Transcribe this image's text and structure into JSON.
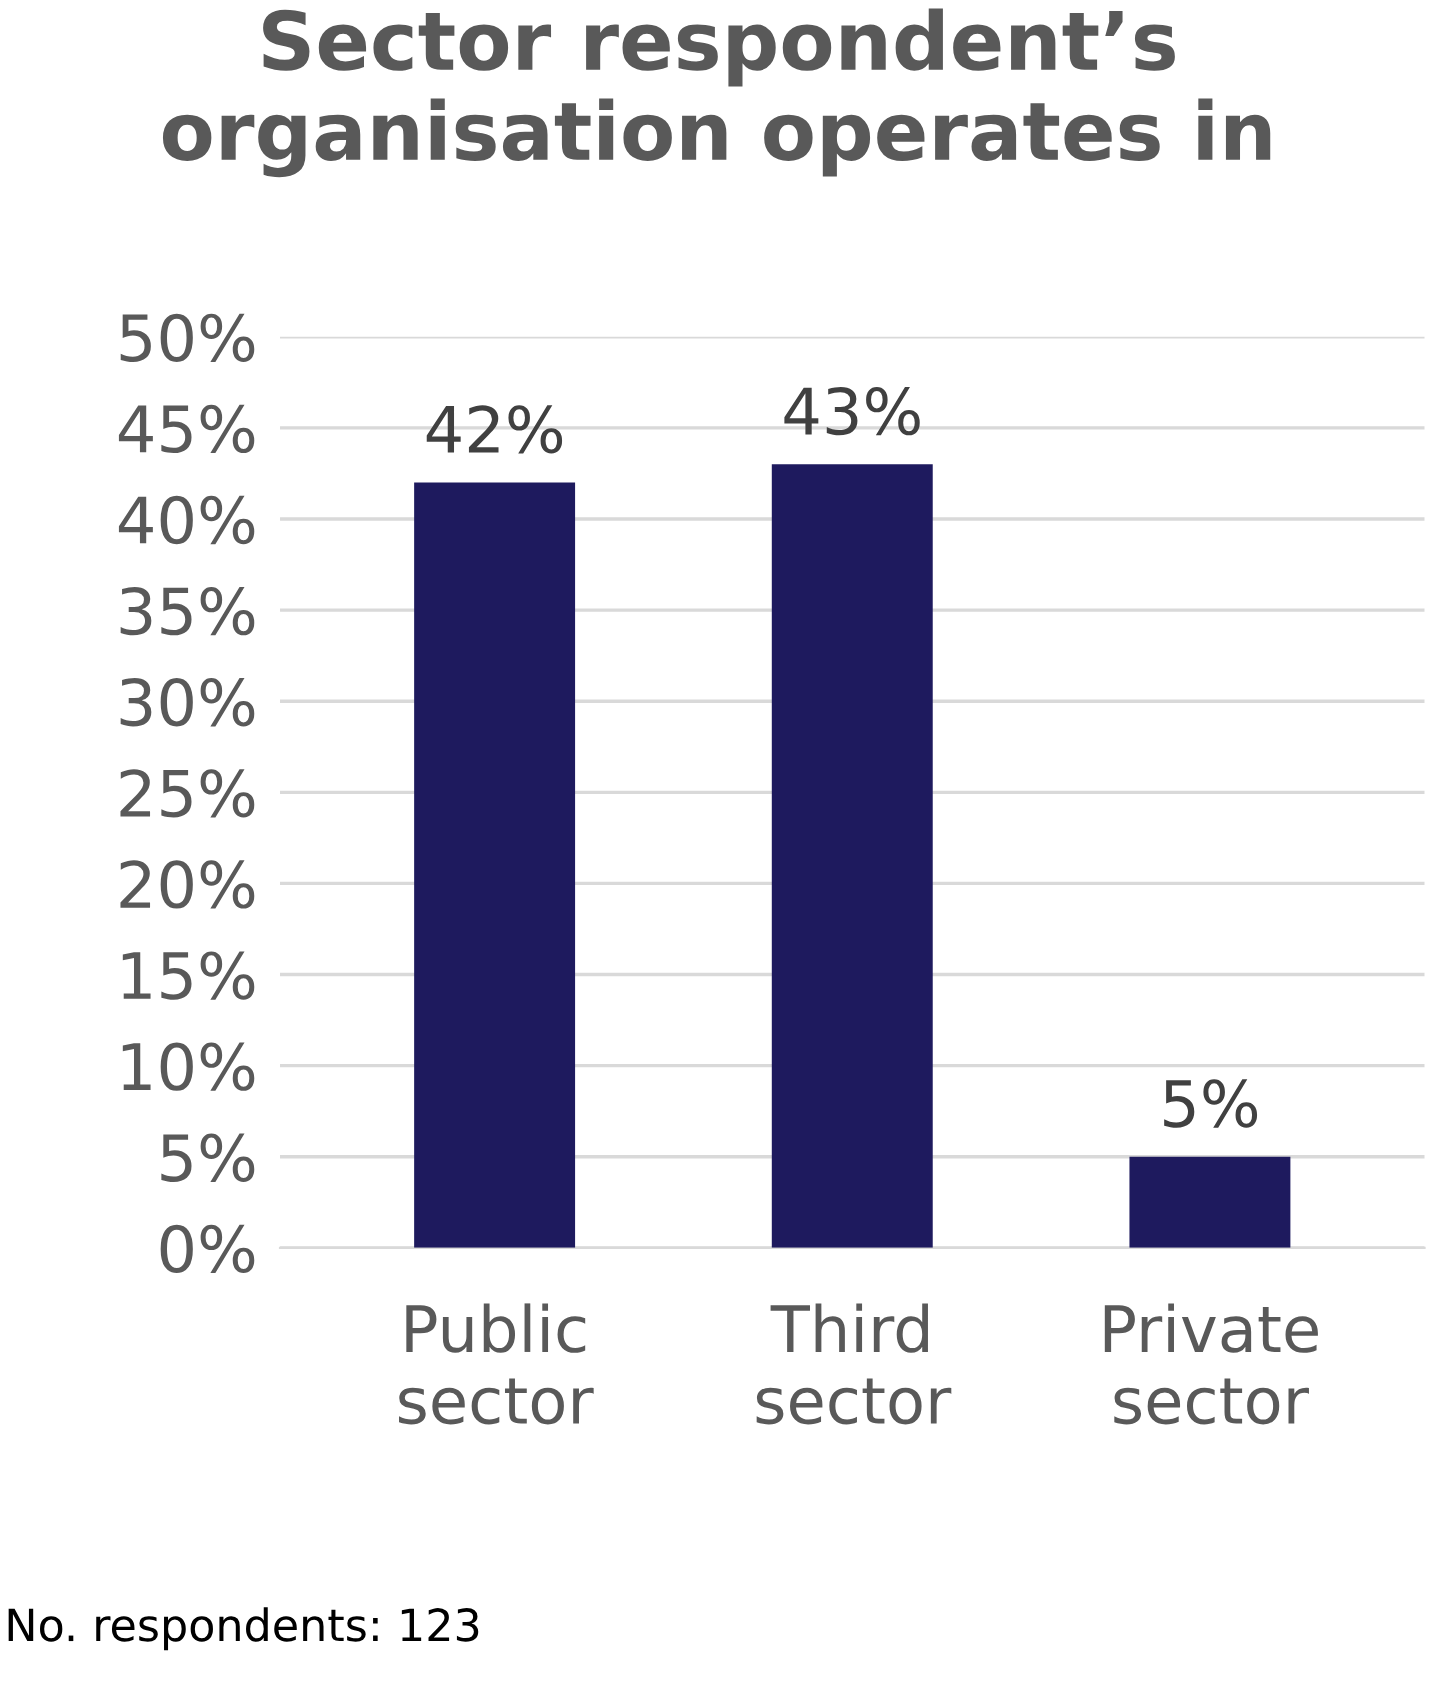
{
  "chart_data": {
    "type": "bar",
    "title": "Sector respondent’s organisation operates in",
    "categories": [
      "Public\nsector",
      "Third\nsector",
      "Private\nsector"
    ],
    "values": [
      42,
      43,
      5
    ],
    "color": "#1e1a5e",
    "value_labels": [
      "42%",
      "43%",
      "5%"
    ],
    "ylim": [
      0,
      50
    ],
    "yticks": [
      {
        "value": 0,
        "label": "0%"
      },
      {
        "value": 5,
        "label": "5%"
      },
      {
        "value": 10,
        "label": "10%"
      },
      {
        "value": 15,
        "label": "15%"
      },
      {
        "value": 20,
        "label": "20%"
      },
      {
        "value": 25,
        "label": "25%"
      },
      {
        "value": 30,
        "label": "30%"
      },
      {
        "value": 35,
        "label": "35%"
      },
      {
        "value": 40,
        "label": "40%"
      },
      {
        "value": 45,
        "label": "45%"
      },
      {
        "value": 50,
        "label": "50%"
      }
    ],
    "grid": "y",
    "legend": false,
    "annotations": [
      "No. respondents: 123"
    ]
  }
}
